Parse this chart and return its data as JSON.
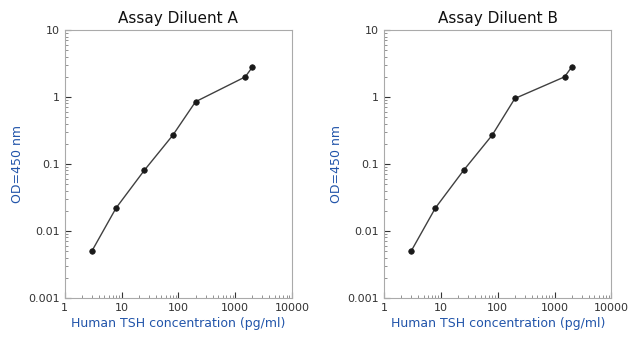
{
  "title_A": "Assay Diluent A",
  "title_B": "Assay Diluent B",
  "xlabel": "Human TSH concentration (pg/ml)",
  "ylabel": "OD=450 nm",
  "xlim": [
    1,
    10000
  ],
  "ylim": [
    0.001,
    10
  ],
  "x_A": [
    3,
    8,
    25,
    80,
    200,
    1500,
    2000
  ],
  "y_A": [
    0.005,
    0.022,
    0.08,
    0.27,
    0.85,
    2.0,
    2.8
  ],
  "x_B": [
    3,
    8,
    25,
    80,
    200,
    1500,
    2000
  ],
  "y_B": [
    0.005,
    0.022,
    0.08,
    0.27,
    0.95,
    2.0,
    2.8
  ],
  "line_color": "#404040",
  "marker_color": "#1a1a1a",
  "label_color": "#2255aa",
  "title_color": "#111111",
  "background_color": "#ffffff",
  "title_fontsize": 11,
  "label_fontsize": 9,
  "tick_label_fontsize": 8
}
